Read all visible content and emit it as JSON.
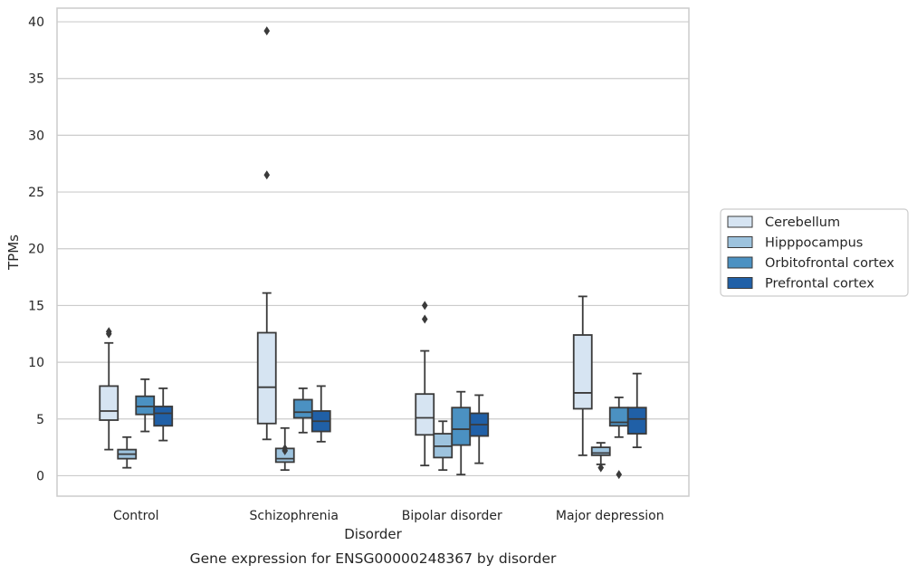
{
  "chart_data": {
    "type": "box",
    "xlabel": "Disorder",
    "ylabel": "TPMs",
    "caption": "Gene expression for ENSG00000248367 by disorder",
    "ylim": [
      -1.8,
      41.2
    ],
    "yticks": [
      0,
      5,
      10,
      15,
      20,
      25,
      30,
      35,
      40
    ],
    "grid": "horizontal",
    "legend_position": "right",
    "categories": [
      "Control",
      "Schizophrenia",
      "Bipolar disorder",
      "Major depression"
    ],
    "series": [
      {
        "name": "Cerebellum",
        "color": "#d6e4f2",
        "boxes": [
          {
            "whisker_low": 2.3,
            "q1": 4.9,
            "median": 5.7,
            "q3": 7.9,
            "whisker_high": 11.7,
            "outliers": [
              12.5,
              12.7
            ]
          },
          {
            "whisker_low": 3.2,
            "q1": 4.6,
            "median": 7.8,
            "q3": 12.6,
            "whisker_high": 16.1,
            "outliers": [
              26.5,
              39.2
            ]
          },
          {
            "whisker_low": 0.9,
            "q1": 3.6,
            "median": 5.1,
            "q3": 7.2,
            "whisker_high": 11.0,
            "outliers": [
              13.8,
              15.0
            ]
          },
          {
            "whisker_low": 1.8,
            "q1": 5.9,
            "median": 7.3,
            "q3": 12.4,
            "whisker_high": 15.8,
            "outliers": []
          }
        ]
      },
      {
        "name": "Hipppocampus",
        "color": "#9dc3de",
        "boxes": [
          {
            "whisker_low": 0.7,
            "q1": 1.5,
            "median": 1.9,
            "q3": 2.3,
            "whisker_high": 3.4,
            "outliers": []
          },
          {
            "whisker_low": 0.5,
            "q1": 1.2,
            "median": 1.5,
            "q3": 2.4,
            "whisker_high": 4.2,
            "outliers": [
              2.2,
              2.4
            ]
          },
          {
            "whisker_low": 0.5,
            "q1": 1.6,
            "median": 2.6,
            "q3": 3.7,
            "whisker_high": 4.8,
            "outliers": []
          },
          {
            "whisker_low": 1.0,
            "q1": 1.8,
            "median": 2.0,
            "q3": 2.5,
            "whisker_high": 2.9,
            "outliers": [
              0.7
            ]
          }
        ]
      },
      {
        "name": "Orbitofrontal cortex",
        "color": "#4b91c2",
        "boxes": [
          {
            "whisker_low": 3.9,
            "q1": 5.4,
            "median": 6.1,
            "q3": 7.0,
            "whisker_high": 8.5,
            "outliers": []
          },
          {
            "whisker_low": 3.8,
            "q1": 5.1,
            "median": 5.6,
            "q3": 6.7,
            "whisker_high": 7.7,
            "outliers": []
          },
          {
            "whisker_low": 0.1,
            "q1": 2.7,
            "median": 4.1,
            "q3": 6.0,
            "whisker_high": 7.4,
            "outliers": []
          },
          {
            "whisker_low": 3.4,
            "q1": 4.4,
            "median": 4.7,
            "q3": 6.0,
            "whisker_high": 6.9,
            "outliers": [
              0.1
            ]
          }
        ]
      },
      {
        "name": "Prefrontal cortex",
        "color": "#2060a7",
        "boxes": [
          {
            "whisker_low": 3.1,
            "q1": 4.4,
            "median": 5.5,
            "q3": 6.1,
            "whisker_high": 7.7,
            "outliers": []
          },
          {
            "whisker_low": 3.0,
            "q1": 3.9,
            "median": 4.8,
            "q3": 5.7,
            "whisker_high": 7.9,
            "outliers": []
          },
          {
            "whisker_low": 1.1,
            "q1": 3.5,
            "median": 4.5,
            "q3": 5.5,
            "whisker_high": 7.1,
            "outliers": []
          },
          {
            "whisker_low": 2.5,
            "q1": 3.7,
            "median": 5.0,
            "q3": 6.0,
            "whisker_high": 9.0,
            "outliers": []
          }
        ]
      }
    ]
  }
}
